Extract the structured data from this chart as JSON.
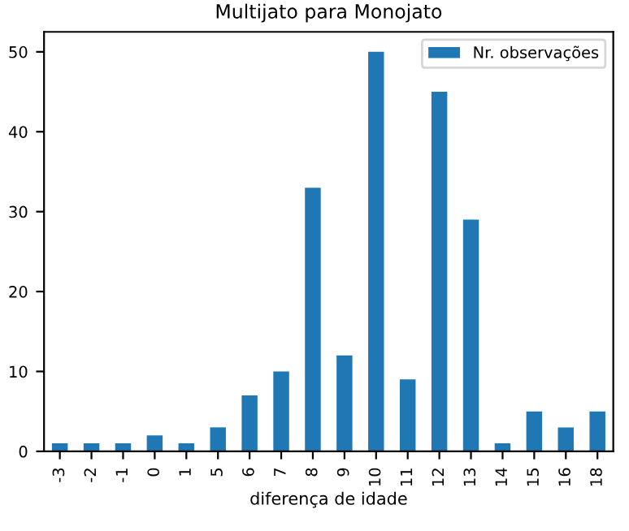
{
  "chart_data": {
    "type": "bar",
    "title": "Multijato para Monojato",
    "xlabel": "diferença de idade",
    "categories": [
      "-3",
      "-2",
      "-1",
      "0",
      "1",
      "5",
      "6",
      "7",
      "8",
      "9",
      "10",
      "11",
      "12",
      "13",
      "14",
      "15",
      "16",
      "18"
    ],
    "series": [
      {
        "name": "Nr. observações",
        "color": "#1f77b4",
        "values": [
          1,
          1,
          1,
          2,
          1,
          3,
          7,
          10,
          33,
          12,
          50,
          9,
          45,
          29,
          1,
          5,
          3,
          5
        ]
      }
    ],
    "ylim": [
      0,
      52.5
    ],
    "yticks": [
      0,
      10,
      20,
      30,
      40,
      50
    ],
    "grid": false,
    "legend": "top right"
  }
}
